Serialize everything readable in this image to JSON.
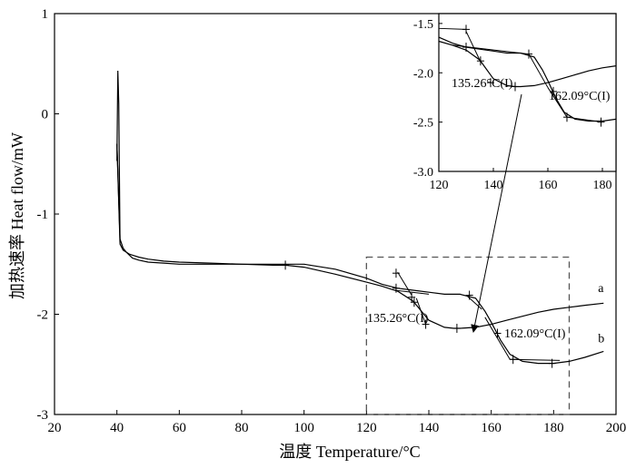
{
  "chart_data": {
    "type": "line",
    "xlabel": "温度 Temperature/°C",
    "ylabel": "加热速率 Heat flow/mW",
    "xlim": [
      20,
      200
    ],
    "ylim": [
      -3,
      1
    ],
    "xticks": [
      "20",
      "40",
      "60",
      "80",
      "100",
      "120",
      "140",
      "160",
      "180",
      "200"
    ],
    "yticks": [
      "-3",
      "-2",
      "-1",
      "0",
      "1"
    ],
    "grid": false,
    "series": [
      {
        "name": "a",
        "x": [
          40,
          41,
          42,
          43,
          44,
          45,
          47,
          50,
          55,
          60,
          70,
          80,
          90,
          94,
          100,
          110,
          120,
          125,
          128,
          130,
          135,
          140,
          145,
          148,
          150,
          155,
          160,
          165,
          170,
          175,
          180,
          185,
          190,
          196
        ],
        "y": [
          -0.3,
          -1.3,
          -1.36,
          -1.38,
          -1.4,
          -1.41,
          -1.43,
          -1.45,
          -1.47,
          -1.48,
          -1.49,
          -1.5,
          -1.51,
          -1.51,
          -1.53,
          -1.6,
          -1.68,
          -1.72,
          -1.75,
          -1.77,
          -1.87,
          -2.06,
          -2.13,
          -2.14,
          -2.14,
          -2.13,
          -2.1,
          -2.06,
          -2.02,
          -1.98,
          -1.95,
          -1.93,
          -1.91,
          -1.89
        ]
      },
      {
        "name": "b",
        "x": [
          40,
          41,
          42,
          43,
          44,
          45,
          47,
          50,
          55,
          60,
          70,
          80,
          90,
          94,
          100,
          110,
          120,
          125,
          130,
          135,
          140,
          145,
          150,
          155,
          158,
          160,
          163,
          166,
          170,
          175,
          180,
          185,
          190,
          196
        ],
        "y": [
          -0.3,
          -1.25,
          -1.34,
          -1.38,
          -1.41,
          -1.44,
          -1.46,
          -1.48,
          -1.49,
          -1.5,
          -1.5,
          -1.5,
          -1.5,
          -1.5,
          -1.5,
          -1.55,
          -1.64,
          -1.7,
          -1.74,
          -1.76,
          -1.78,
          -1.8,
          -1.8,
          -1.84,
          -1.97,
          -2.08,
          -2.26,
          -2.4,
          -2.47,
          -2.49,
          -2.49,
          -2.47,
          -2.43,
          -2.37
        ]
      }
    ],
    "annotations": [
      {
        "text": "135.26°C(I)",
        "x": 135.26
      },
      {
        "text": "162.09°C(I)",
        "x": 162.09
      }
    ],
    "inset": {
      "xlim": [
        120,
        185
      ],
      "ylim": [
        -3.0,
        -1.4
      ],
      "xticks": [
        "120",
        "140",
        "160",
        "180"
      ],
      "yticks": [
        "-3.0",
        "-2.5",
        "-2.0",
        "-1.5"
      ],
      "annotations": [
        "135.26°C(I)",
        "162.09°C(I)"
      ]
    },
    "zoom_box": {
      "x": [
        120,
        185
      ],
      "y": [
        -3.0,
        -1.43
      ]
    }
  }
}
